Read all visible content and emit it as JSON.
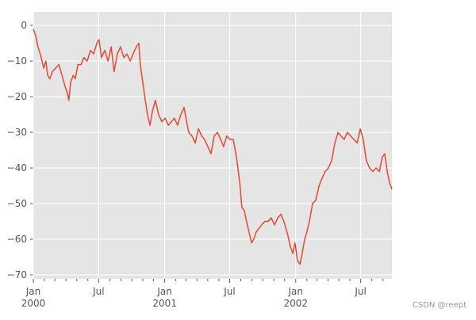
{
  "chart_data": {
    "type": "line",
    "x": [
      0,
      7,
      13,
      22,
      29,
      35,
      40,
      46,
      53,
      62,
      71,
      80,
      88,
      95,
      99,
      104,
      111,
      117,
      124,
      133,
      141,
      150,
      159,
      168,
      177,
      183,
      190,
      199,
      208,
      217,
      225,
      234,
      243,
      252,
      261,
      270,
      278,
      287,
      294,
      298,
      305,
      312,
      318,
      325,
      332,
      340,
      349,
      358,
      367,
      376,
      385,
      393,
      402,
      411,
      420,
      427,
      433,
      442,
      451,
      460,
      469,
      477,
      486,
      495,
      504,
      513,
      522,
      530,
      539,
      548,
      557,
      566,
      575,
      581,
      588,
      594,
      601,
      608,
      614,
      621,
      628,
      636,
      645,
      654,
      663,
      672,
      681,
      690,
      698,
      707,
      716,
      723,
      729,
      736,
      743,
      749,
      756,
      762,
      769,
      778,
      787,
      796,
      804,
      813,
      822,
      831,
      840,
      849,
      857,
      866,
      875,
      884,
      893,
      902,
      911,
      919,
      928,
      937,
      946,
      955,
      964,
      972,
      979,
      986,
      992,
      999
    ],
    "series": [
      {
        "color": "#E24A33",
        "values": [
          -1,
          -3,
          -6,
          -9,
          -12,
          -10,
          -14,
          -15,
          -13,
          -12,
          -11,
          -14,
          -17,
          -19,
          -21,
          -16,
          -14,
          -15,
          -11,
          -11,
          -9,
          -10,
          -7,
          -8,
          -5,
          -4,
          -9,
          -7,
          -10,
          -6,
          -13,
          -8,
          -6,
          -9,
          -8,
          -10,
          -8,
          -6,
          -5,
          -11,
          -16,
          -21,
          -25,
          -28,
          -24,
          -21,
          -25,
          -27,
          -26,
          -28,
          -27,
          -26,
          -28,
          -25,
          -23,
          -27,
          -30,
          -31,
          -33,
          -29,
          -31,
          -32,
          -34,
          -36,
          -31,
          -30,
          -32,
          -34,
          -31,
          -32,
          -32,
          -37,
          -44,
          -51,
          -52,
          -55,
          -58,
          -61,
          -60,
          -58,
          -57,
          -56,
          -55,
          -55,
          -54,
          -56,
          -54,
          -53,
          -55,
          -58,
          -62,
          -64,
          -61,
          -66,
          -67,
          -64,
          -60,
          -58,
          -55,
          -50,
          -49,
          -45,
          -43,
          -41,
          -40,
          -38,
          -33,
          -30,
          -31,
          -32,
          -30,
          -31,
          -32,
          -33,
          -29,
          -32,
          -38,
          -40,
          -41,
          -40,
          -41,
          -37,
          -36,
          -41,
          -44,
          -46
        ]
      }
    ],
    "xlim": [
      0,
      999
    ],
    "xticks": [
      {
        "value": 0,
        "label": "Jan 2000"
      },
      {
        "value": 182,
        "label": "Jul"
      },
      {
        "value": 366,
        "label": "Jan 2001"
      },
      {
        "value": 547,
        "label": "Jul"
      },
      {
        "value": 731,
        "label": "Jan 2002"
      },
      {
        "value": 912,
        "label": "Jul"
      }
    ],
    "xminorticks": [
      31,
      60,
      91,
      121,
      152,
      213,
      244,
      274,
      305,
      335,
      397,
      425,
      456,
      486,
      517,
      578,
      609,
      639,
      670,
      700,
      762,
      790,
      821,
      851,
      882,
      943,
      974
    ],
    "ylim": [
      -71.1,
      3.8
    ],
    "yticks": [
      0,
      {
        "value": -10,
        "label": "−10"
      },
      {
        "value": -20,
        "label": "−20"
      },
      {
        "value": -30,
        "label": "−30"
      },
      {
        "value": -40,
        "label": "−40"
      },
      {
        "value": -50,
        "label": "−50"
      },
      {
        "value": -60,
        "label": "−60"
      },
      {
        "value": -70,
        "label": "−70"
      }
    ],
    "grid": true,
    "watermark": "CSDN @reept"
  }
}
